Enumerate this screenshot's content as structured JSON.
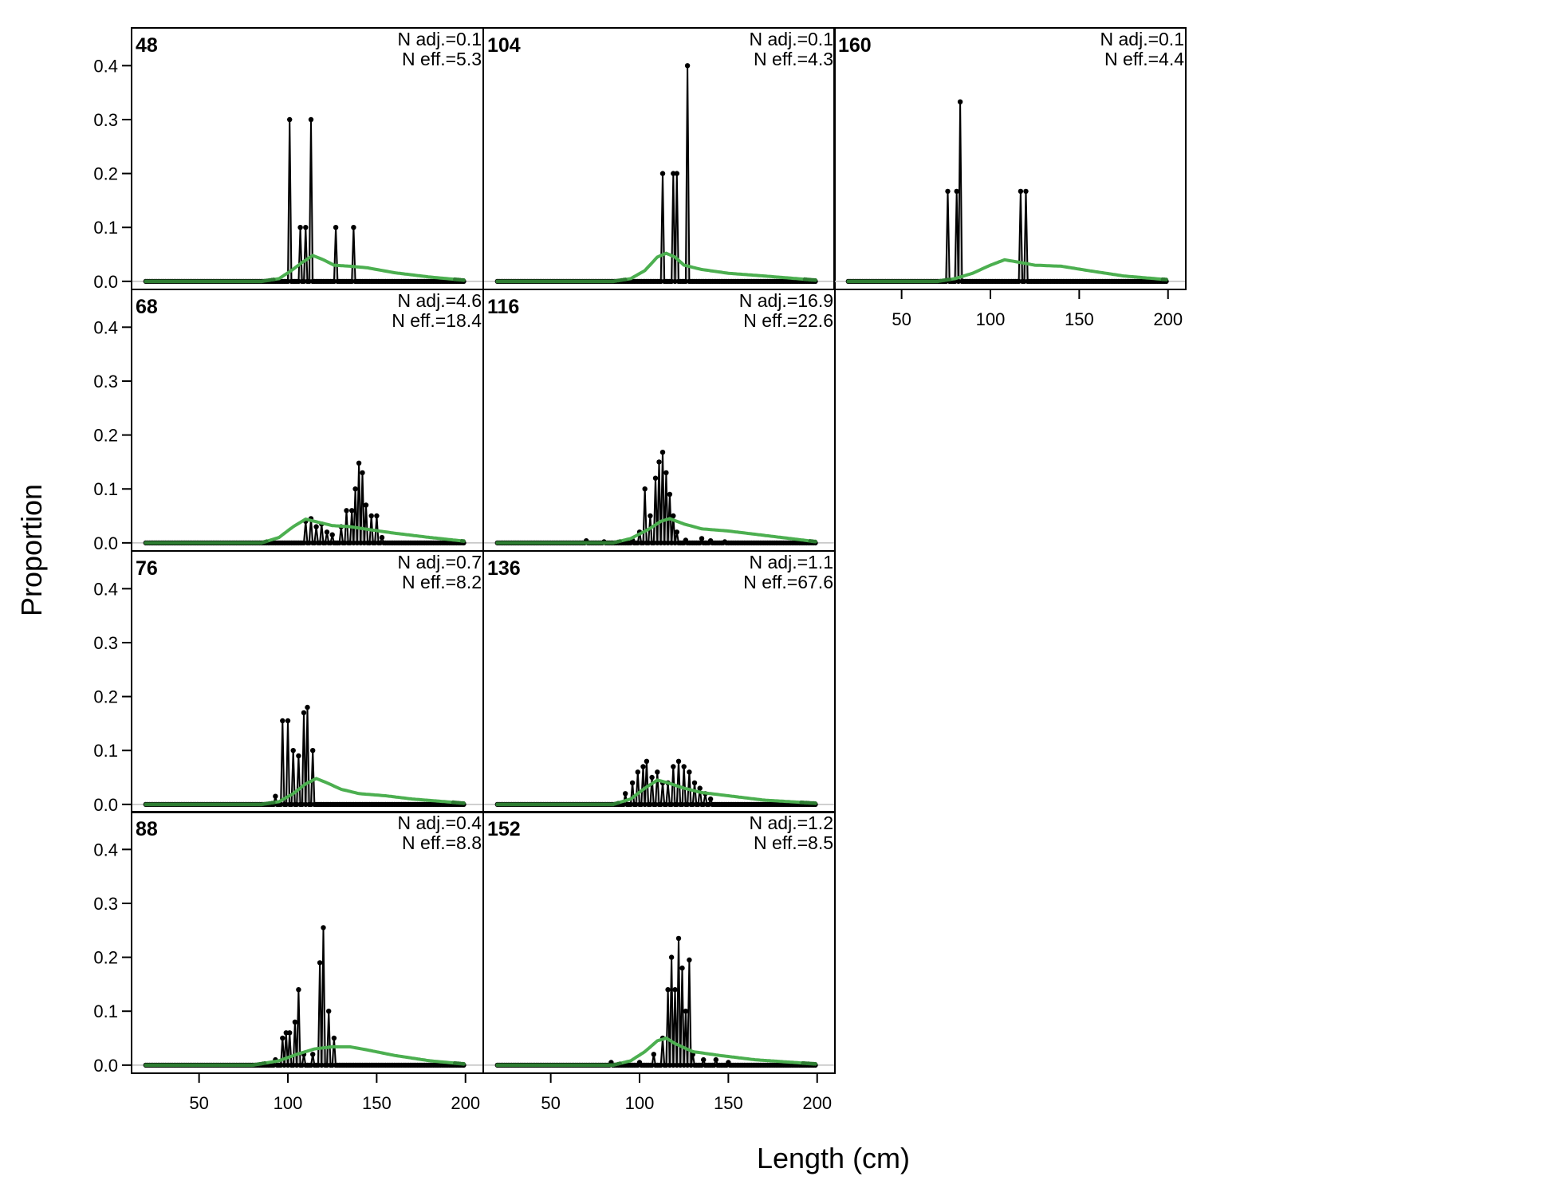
{
  "chart_data": {
    "type": "line",
    "ylabel": "Proportion",
    "xlabel": "Length (cm)",
    "xlim": [
      12,
      210
    ],
    "ylim": [
      -0.015,
      0.47
    ],
    "x_ticks": [
      50,
      100,
      150,
      200
    ],
    "y_ticks": [
      0.0,
      0.1,
      0.2,
      0.3,
      0.4
    ],
    "colors": {
      "observed_fill": "#bdbdbd",
      "observed_line": "#000000",
      "expected_line": "#4caf50",
      "zero_line": "#c0c0c0"
    },
    "panels": [
      {
        "label": "48",
        "n_adj": "N adj.=0.1",
        "n_eff": "N eff.=5.3",
        "observed": [
          [
            101,
            0.3
          ],
          [
            107,
            0.1
          ],
          [
            110,
            0.1
          ],
          [
            113,
            0.3
          ],
          [
            127,
            0.1
          ],
          [
            137,
            0.1
          ]
        ],
        "expected": [
          [
            85,
            0
          ],
          [
            95,
            0.005
          ],
          [
            102,
            0.02
          ],
          [
            108,
            0.035
          ],
          [
            114,
            0.048
          ],
          [
            120,
            0.04
          ],
          [
            126,
            0.03
          ],
          [
            135,
            0.028
          ],
          [
            145,
            0.025
          ],
          [
            160,
            0.016
          ],
          [
            180,
            0.008
          ],
          [
            200,
            0.002
          ]
        ]
      },
      {
        "label": "68",
        "n_adj": "N adj.=4.6",
        "n_eff": "N eff.=18.4",
        "observed": [
          [
            110,
            0.04
          ],
          [
            113,
            0.045
          ],
          [
            116,
            0.03
          ],
          [
            119,
            0.035
          ],
          [
            122,
            0.02
          ],
          [
            125,
            0.015
          ],
          [
            130,
            0.03
          ],
          [
            133,
            0.06
          ],
          [
            136,
            0.06
          ],
          [
            138,
            0.1
          ],
          [
            140,
            0.148
          ],
          [
            142,
            0.13
          ],
          [
            144,
            0.07
          ],
          [
            147,
            0.05
          ],
          [
            150,
            0.05
          ],
          [
            153,
            0.01
          ]
        ],
        "expected": [
          [
            85,
            0
          ],
          [
            95,
            0.01
          ],
          [
            103,
            0.03
          ],
          [
            110,
            0.044
          ],
          [
            115,
            0.04
          ],
          [
            125,
            0.032
          ],
          [
            135,
            0.03
          ],
          [
            145,
            0.025
          ],
          [
            160,
            0.018
          ],
          [
            180,
            0.01
          ],
          [
            200,
            0.003
          ]
        ]
      },
      {
        "label": "76",
        "n_adj": "N adj.=0.7",
        "n_eff": "N eff.=8.2",
        "observed": [
          [
            93,
            0.015
          ],
          [
            97,
            0.155
          ],
          [
            100,
            0.155
          ],
          [
            103,
            0.1
          ],
          [
            106,
            0.09
          ],
          [
            109,
            0.17
          ],
          [
            111,
            0.18
          ],
          [
            114,
            0.1
          ]
        ],
        "expected": [
          [
            85,
            0
          ],
          [
            95,
            0.005
          ],
          [
            103,
            0.02
          ],
          [
            110,
            0.038
          ],
          [
            116,
            0.048
          ],
          [
            122,
            0.04
          ],
          [
            130,
            0.028
          ],
          [
            140,
            0.02
          ],
          [
            155,
            0.016
          ],
          [
            170,
            0.01
          ],
          [
            200,
            0.002
          ]
        ]
      },
      {
        "label": "88",
        "n_adj": "N adj.=0.4",
        "n_eff": "N eff.=8.8",
        "observed": [
          [
            93,
            0.01
          ],
          [
            97,
            0.05
          ],
          [
            99,
            0.06
          ],
          [
            101,
            0.06
          ],
          [
            104,
            0.08
          ],
          [
            106,
            0.14
          ],
          [
            109,
            0.02
          ],
          [
            114,
            0.02
          ],
          [
            118,
            0.19
          ],
          [
            120,
            0.255
          ],
          [
            123,
            0.1
          ],
          [
            126,
            0.05
          ]
        ],
        "expected": [
          [
            80,
            0
          ],
          [
            95,
            0.008
          ],
          [
            105,
            0.02
          ],
          [
            115,
            0.03
          ],
          [
            125,
            0.034
          ],
          [
            135,
            0.034
          ],
          [
            145,
            0.028
          ],
          [
            160,
            0.018
          ],
          [
            180,
            0.008
          ],
          [
            200,
            0.002
          ]
        ]
      },
      {
        "label": "104",
        "n_adj": "N adj.=0.1",
        "n_eff": "N eff.=4.3",
        "observed": [
          [
            113,
            0.2
          ],
          [
            119,
            0.2
          ],
          [
            121,
            0.2
          ],
          [
            127,
            0.4
          ]
        ],
        "expected": [
          [
            85,
            0
          ],
          [
            95,
            0.005
          ],
          [
            103,
            0.02
          ],
          [
            110,
            0.045
          ],
          [
            115,
            0.052
          ],
          [
            120,
            0.045
          ],
          [
            125,
            0.03
          ],
          [
            135,
            0.022
          ],
          [
            150,
            0.015
          ],
          [
            170,
            0.01
          ],
          [
            200,
            0.002
          ]
        ]
      },
      {
        "label": "116",
        "n_adj": "N adj.=16.9",
        "n_eff": "N eff.=22.6",
        "observed": [
          [
            70,
            0.004
          ],
          [
            80,
            0.002
          ],
          [
            96,
            0.005
          ],
          [
            100,
            0.02
          ],
          [
            103,
            0.1
          ],
          [
            106,
            0.05
          ],
          [
            109,
            0.12
          ],
          [
            111,
            0.15
          ],
          [
            113,
            0.168
          ],
          [
            115,
            0.13
          ],
          [
            117,
            0.09
          ],
          [
            119,
            0.05
          ],
          [
            121,
            0.02
          ],
          [
            126,
            0.005
          ],
          [
            135,
            0.008
          ],
          [
            140,
            0.004
          ],
          [
            148,
            0.002
          ]
        ],
        "expected": [
          [
            85,
            0
          ],
          [
            95,
            0.008
          ],
          [
            105,
            0.025
          ],
          [
            112,
            0.04
          ],
          [
            117,
            0.045
          ],
          [
            125,
            0.035
          ],
          [
            135,
            0.026
          ],
          [
            150,
            0.022
          ],
          [
            165,
            0.016
          ],
          [
            180,
            0.01
          ],
          [
            200,
            0.002
          ]
        ]
      },
      {
        "label": "136",
        "n_adj": "N adj.=1.1",
        "n_eff": "N eff.=67.6",
        "observed": [
          [
            92,
            0.02
          ],
          [
            96,
            0.04
          ],
          [
            99,
            0.06
          ],
          [
            102,
            0.07
          ],
          [
            104,
            0.08
          ],
          [
            107,
            0.05
          ],
          [
            110,
            0.06
          ],
          [
            113,
            0.04
          ],
          [
            116,
            0.04
          ],
          [
            119,
            0.07
          ],
          [
            122,
            0.08
          ],
          [
            125,
            0.07
          ],
          [
            128,
            0.06
          ],
          [
            131,
            0.04
          ],
          [
            134,
            0.03
          ],
          [
            137,
            0.02
          ],
          [
            140,
            0.01
          ]
        ],
        "expected": [
          [
            85,
            0
          ],
          [
            95,
            0.01
          ],
          [
            103,
            0.03
          ],
          [
            110,
            0.045
          ],
          [
            116,
            0.04
          ],
          [
            125,
            0.03
          ],
          [
            135,
            0.022
          ],
          [
            150,
            0.016
          ],
          [
            170,
            0.008
          ],
          [
            200,
            0.002
          ]
        ]
      },
      {
        "label": "152",
        "n_adj": "N adj.=1.2",
        "n_eff": "N eff.=8.5",
        "observed": [
          [
            84,
            0.005
          ],
          [
            100,
            0.005
          ],
          [
            108,
            0.02
          ],
          [
            113,
            0.05
          ],
          [
            116,
            0.14
          ],
          [
            118,
            0.2
          ],
          [
            120,
            0.14
          ],
          [
            122,
            0.235
          ],
          [
            124,
            0.18
          ],
          [
            126,
            0.1
          ],
          [
            128,
            0.195
          ],
          [
            130,
            0.02
          ],
          [
            136,
            0.01
          ],
          [
            143,
            0.01
          ],
          [
            150,
            0.005
          ]
        ],
        "expected": [
          [
            85,
            0
          ],
          [
            95,
            0.008
          ],
          [
            103,
            0.025
          ],
          [
            110,
            0.045
          ],
          [
            115,
            0.05
          ],
          [
            120,
            0.04
          ],
          [
            130,
            0.025
          ],
          [
            145,
            0.018
          ],
          [
            165,
            0.01
          ],
          [
            200,
            0.002
          ]
        ]
      },
      {
        "label": "160",
        "n_adj": "N adj.=0.1",
        "n_eff": "N eff.=4.4",
        "observed": [
          [
            76,
            0.167
          ],
          [
            81,
            0.167
          ],
          [
            83,
            0.333
          ],
          [
            117,
            0.167
          ],
          [
            120,
            0.167
          ]
        ],
        "expected": [
          [
            70,
            0
          ],
          [
            80,
            0.005
          ],
          [
            90,
            0.015
          ],
          [
            100,
            0.03
          ],
          [
            108,
            0.04
          ],
          [
            115,
            0.036
          ],
          [
            125,
            0.03
          ],
          [
            140,
            0.028
          ],
          [
            155,
            0.02
          ],
          [
            175,
            0.01
          ],
          [
            200,
            0.003
          ]
        ]
      }
    ]
  }
}
